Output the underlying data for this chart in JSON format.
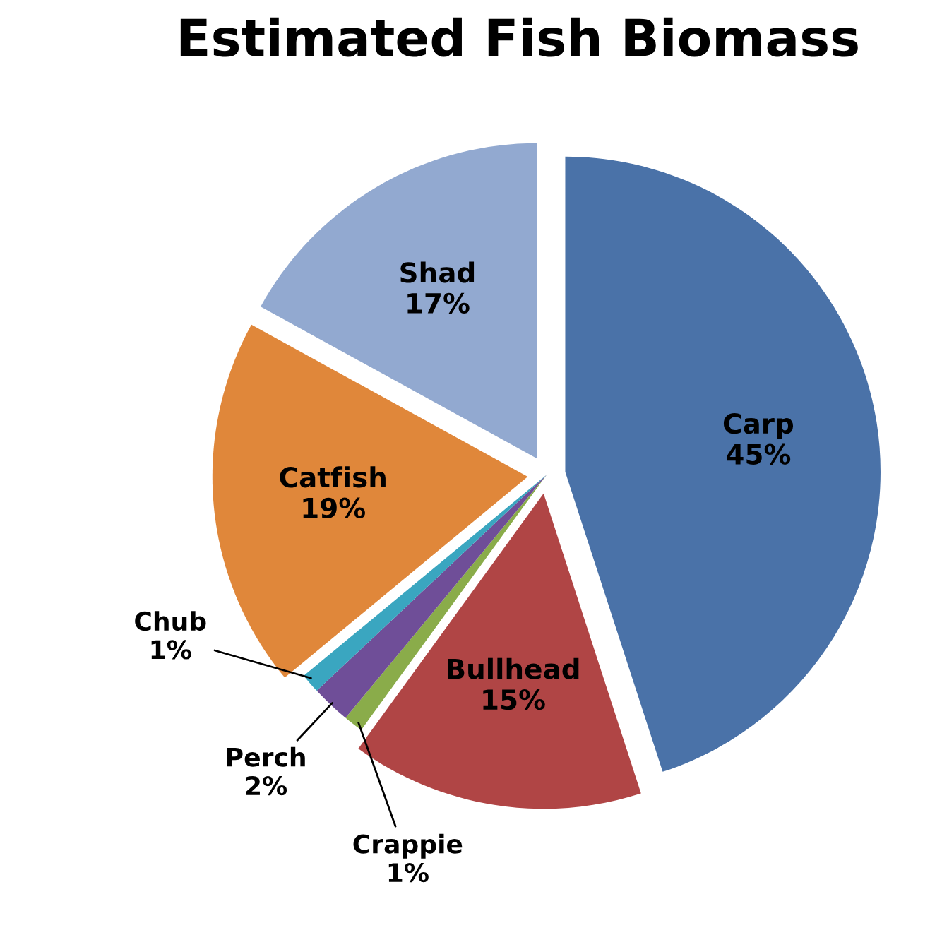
{
  "chart_data": {
    "type": "pie",
    "title": "Estimated Fish Biomass",
    "categories": [
      "Carp",
      "Bullhead",
      "Crappie",
      "Perch",
      "Chub",
      "Catfish",
      "Shad"
    ],
    "values": [
      45,
      15,
      1,
      2,
      1,
      19,
      17
    ],
    "value_labels": [
      "45%",
      "15%",
      "1%",
      "2%",
      "1%",
      "19%",
      "17%"
    ],
    "colors": [
      "#4a72a8",
      "#b04545",
      "#8aac4a",
      "#6f4e98",
      "#3aa6c0",
      "#e0873a",
      "#92a9d0"
    ],
    "legend": false
  }
}
